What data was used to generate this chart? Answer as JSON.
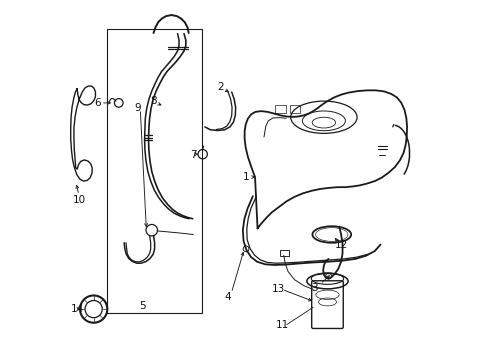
{
  "bg_color": "#ffffff",
  "line_color": "#1a1a1a",
  "label_color": "#111111",
  "lw_main": 0.9,
  "lw_thick": 1.3,
  "label_fontsize": 7.5
}
